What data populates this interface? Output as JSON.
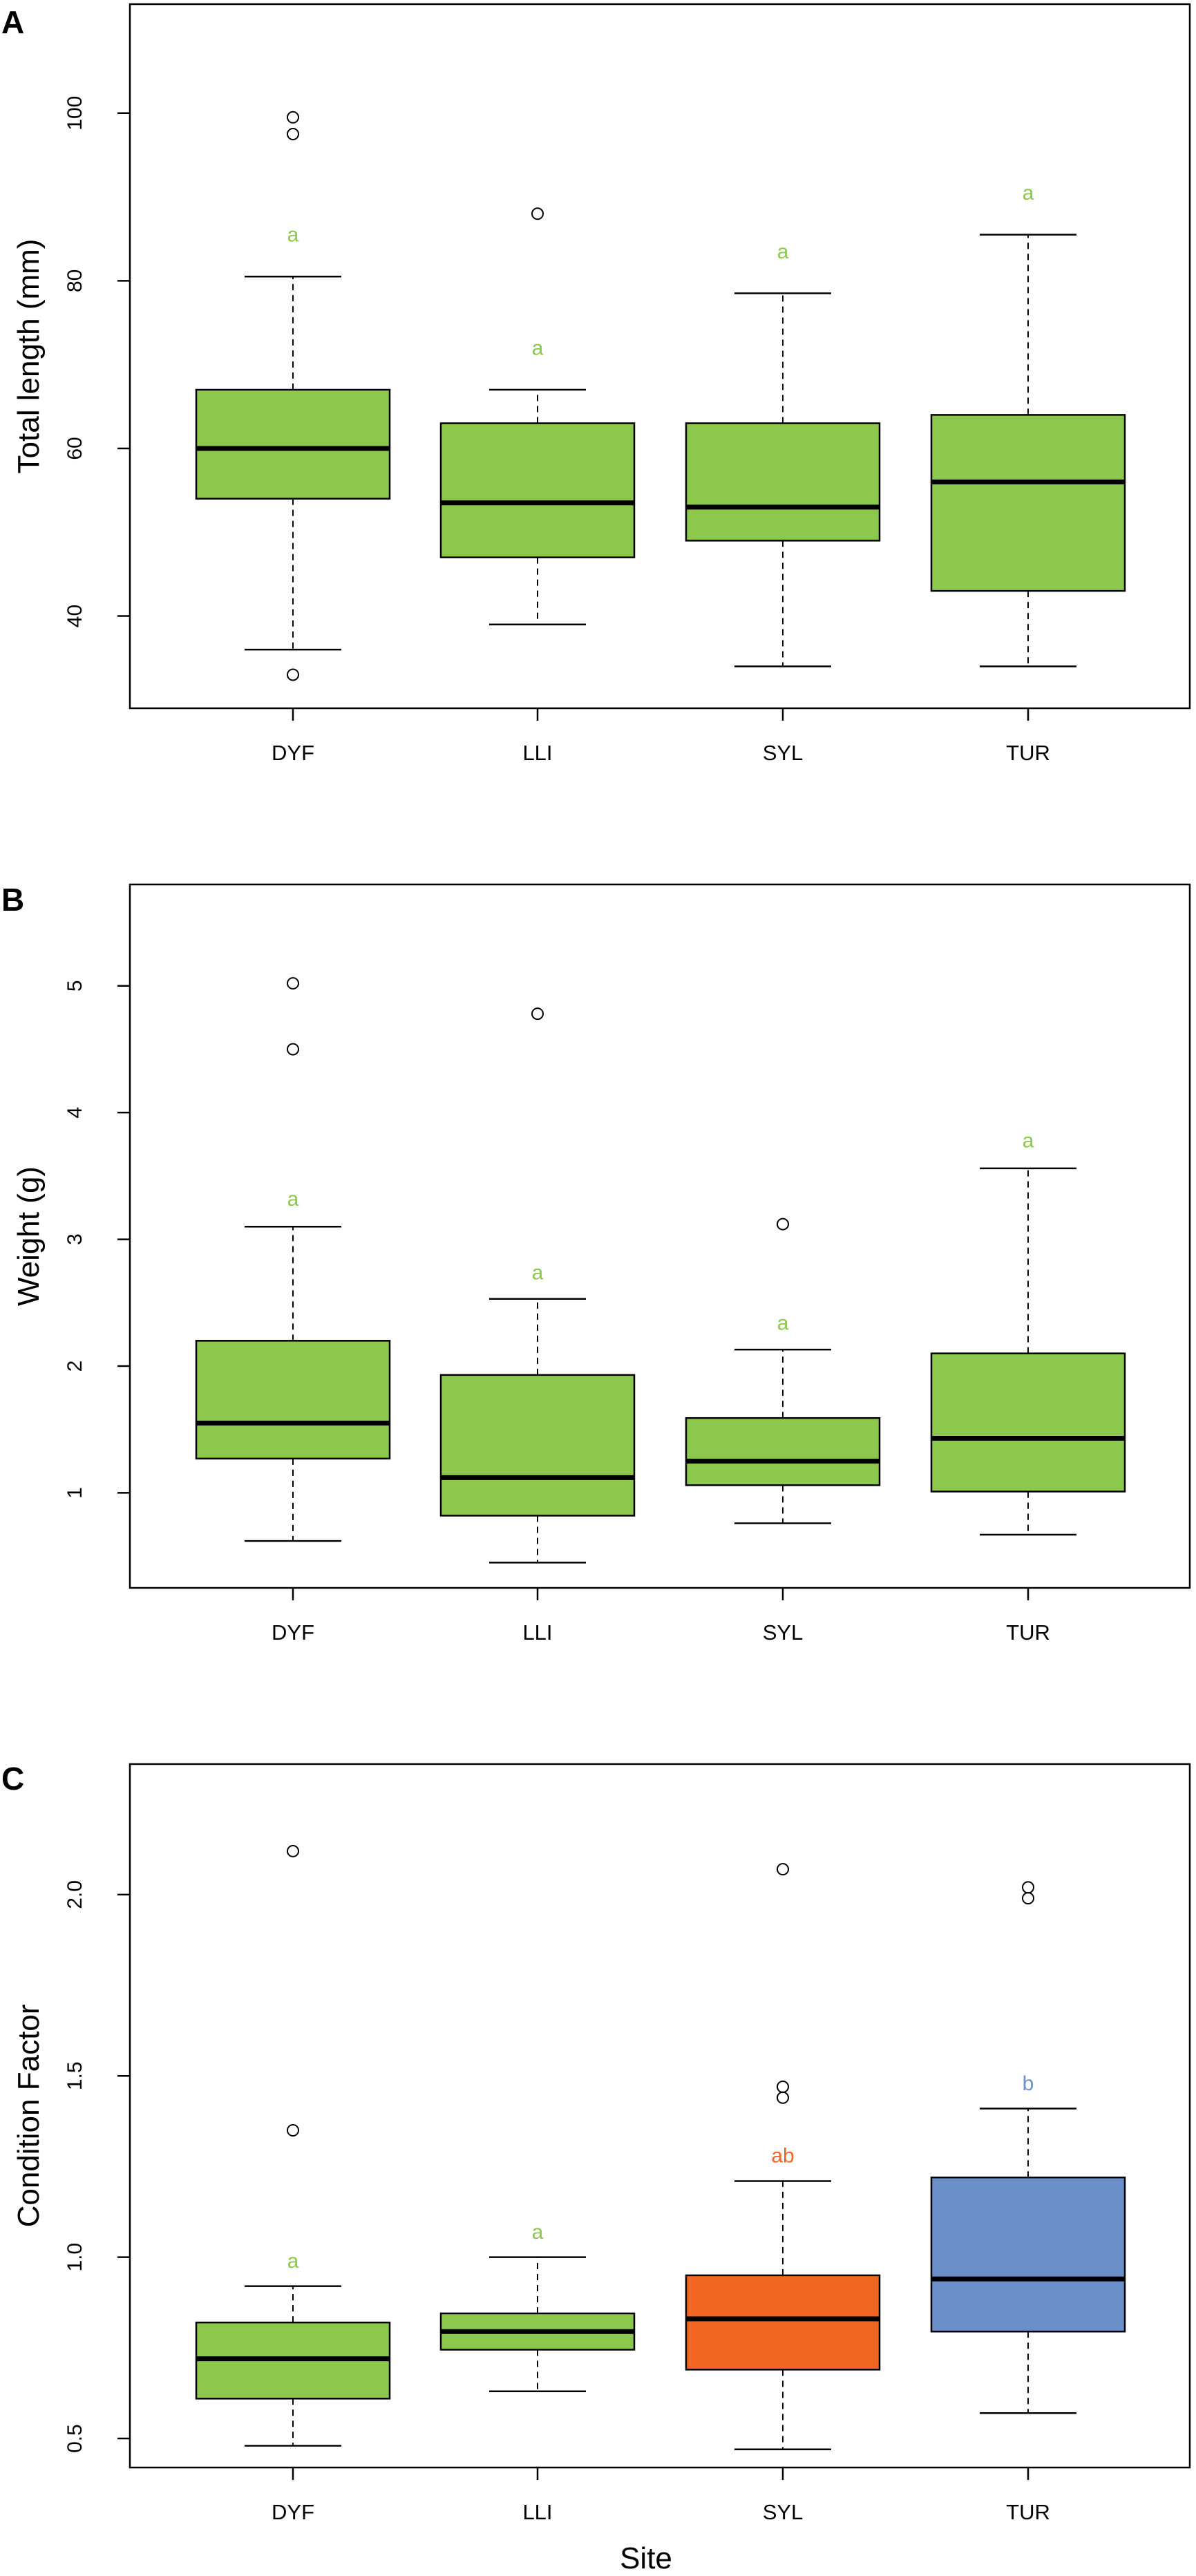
{
  "figure": {
    "xlabel": "Site",
    "colors": {
      "green": "#8CC84B",
      "orange": "#F26522",
      "blue": "#6B8FC9",
      "letter_green": "#8CC84B"
    }
  },
  "chart_data": [
    {
      "type": "box",
      "panel_label": "A",
      "title": "",
      "ylabel": "Total length (mm)",
      "xlabel": "",
      "ylim": [
        29,
        113
      ],
      "yticks": [
        40,
        60,
        80,
        100
      ],
      "categories": [
        "DYF",
        "LLI",
        "SYL",
        "TUR"
      ],
      "boxes": [
        {
          "site": "DYF",
          "whisker_low": 36,
          "q1": 54,
          "median": 60,
          "q3": 67,
          "whisker_high": 80.5,
          "outliers": [
            33,
            97.5,
            99.5
          ],
          "letter": "a",
          "letter_y": 85.5,
          "color": "#8CC84B",
          "letter_color": "#8CC84B"
        },
        {
          "site": "LLI",
          "whisker_low": 39,
          "q1": 47,
          "median": 53.5,
          "q3": 63,
          "whisker_high": 67,
          "outliers": [
            88
          ],
          "letter": "a",
          "letter_y": 72,
          "color": "#8CC84B",
          "letter_color": "#8CC84B"
        },
        {
          "site": "SYL",
          "whisker_low": 34,
          "q1": 49,
          "median": 53,
          "q3": 63,
          "whisker_high": 78.5,
          "outliers": [],
          "letter": "a",
          "letter_y": 83.5,
          "color": "#8CC84B",
          "letter_color": "#8CC84B"
        },
        {
          "site": "TUR",
          "whisker_low": 34,
          "q1": 43,
          "median": 56,
          "q3": 64,
          "whisker_high": 85.5,
          "outliers": [],
          "letter": "a",
          "letter_y": 90.5,
          "color": "#8CC84B",
          "letter_color": "#8CC84B"
        }
      ]
    },
    {
      "type": "box",
      "panel_label": "B",
      "title": "",
      "ylabel": "Weight (g)",
      "xlabel": "",
      "ylim": [
        0.25,
        5.8
      ],
      "yticks": [
        1,
        2,
        3,
        4,
        5
      ],
      "categories": [
        "DYF",
        "LLI",
        "SYL",
        "TUR"
      ],
      "boxes": [
        {
          "site": "DYF",
          "whisker_low": 0.62,
          "q1": 1.27,
          "median": 1.55,
          "q3": 2.2,
          "whisker_high": 3.1,
          "outliers": [
            4.5,
            5.02
          ],
          "letter": "a",
          "letter_y": 3.32,
          "color": "#8CC84B",
          "letter_color": "#8CC84B"
        },
        {
          "site": "LLI",
          "whisker_low": 0.45,
          "q1": 0.82,
          "median": 1.12,
          "q3": 1.93,
          "whisker_high": 2.53,
          "outliers": [
            4.78
          ],
          "letter": "a",
          "letter_y": 2.74,
          "color": "#8CC84B",
          "letter_color": "#8CC84B"
        },
        {
          "site": "SYL",
          "whisker_low": 0.76,
          "q1": 1.06,
          "median": 1.25,
          "q3": 1.59,
          "whisker_high": 2.13,
          "outliers": [
            3.12
          ],
          "letter": "a",
          "letter_y": 2.34,
          "color": "#8CC84B",
          "letter_color": "#8CC84B"
        },
        {
          "site": "TUR",
          "whisker_low": 0.67,
          "q1": 1.01,
          "median": 1.43,
          "q3": 2.1,
          "whisker_high": 3.56,
          "outliers": [],
          "letter": "a",
          "letter_y": 3.78,
          "color": "#8CC84B",
          "letter_color": "#8CC84B"
        }
      ]
    },
    {
      "type": "box",
      "panel_label": "C",
      "title": "",
      "ylabel": "Condition Factor",
      "xlabel": "Site",
      "ylim": [
        0.42,
        2.36
      ],
      "yticks": [
        0.5,
        1.0,
        1.5,
        2.0
      ],
      "ytick_labels": [
        "0.5",
        "1.0",
        "1.5",
        "2.0"
      ],
      "categories": [
        "DYF",
        "LLI",
        "SYL",
        "TUR"
      ],
      "boxes": [
        {
          "site": "DYF",
          "whisker_low": 0.48,
          "q1": 0.61,
          "median": 0.72,
          "q3": 0.82,
          "whisker_high": 0.92,
          "outliers": [
            1.35,
            2.12
          ],
          "letter": "a",
          "letter_y": 0.99,
          "color": "#8CC84B",
          "letter_color": "#8CC84B"
        },
        {
          "site": "LLI",
          "whisker_low": 0.63,
          "q1": 0.745,
          "median": 0.795,
          "q3": 0.845,
          "whisker_high": 1.0,
          "outliers": [],
          "letter": "a",
          "letter_y": 1.07,
          "color": "#8CC84B",
          "letter_color": "#8CC84B"
        },
        {
          "site": "SYL",
          "whisker_low": 0.47,
          "q1": 0.69,
          "median": 0.83,
          "q3": 0.95,
          "whisker_high": 1.21,
          "outliers": [
            1.44,
            1.47,
            2.07
          ],
          "letter": "ab",
          "letter_y": 1.28,
          "color": "#F26522",
          "letter_color": "#F26522"
        },
        {
          "site": "TUR",
          "whisker_low": 0.57,
          "q1": 0.795,
          "median": 0.94,
          "q3": 1.22,
          "whisker_high": 1.41,
          "outliers": [
            1.99,
            2.02
          ],
          "letter": "b",
          "letter_y": 1.48,
          "color": "#6B8FC9",
          "letter_color": "#6B8FC9"
        }
      ]
    }
  ]
}
